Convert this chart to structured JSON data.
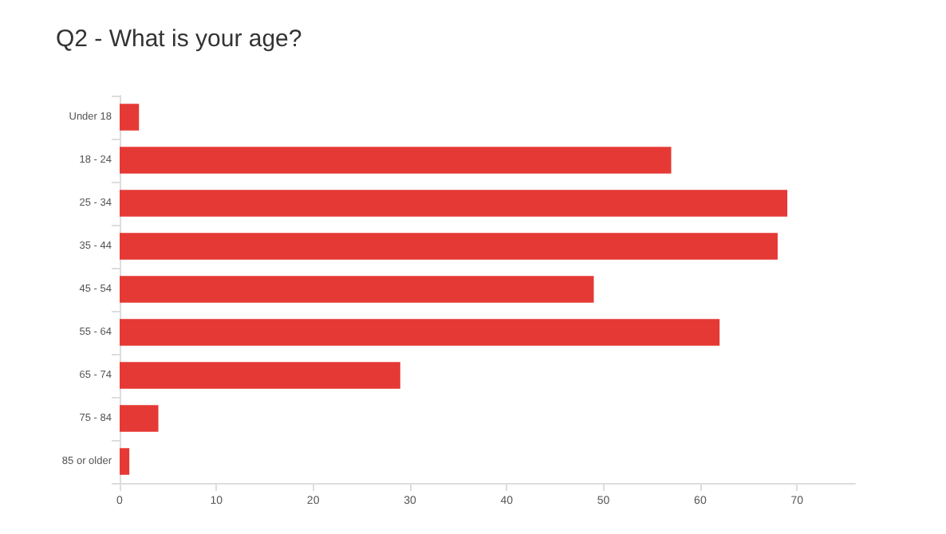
{
  "chart_data": {
    "type": "bar",
    "orientation": "horizontal",
    "title": "Q2 - What is your age?",
    "categories": [
      "Under 18",
      "18 - 24",
      "25 - 34",
      "35 - 44",
      "45 - 54",
      "55 - 64",
      "65 - 74",
      "75 - 84",
      "85 or older"
    ],
    "values": [
      2,
      57,
      69,
      68,
      49,
      62,
      29,
      4,
      1
    ],
    "color": "#e53935",
    "xlim": [
      0,
      76
    ],
    "xticks": [
      0,
      10,
      20,
      30,
      40,
      50,
      60,
      70
    ],
    "grid": false
  }
}
